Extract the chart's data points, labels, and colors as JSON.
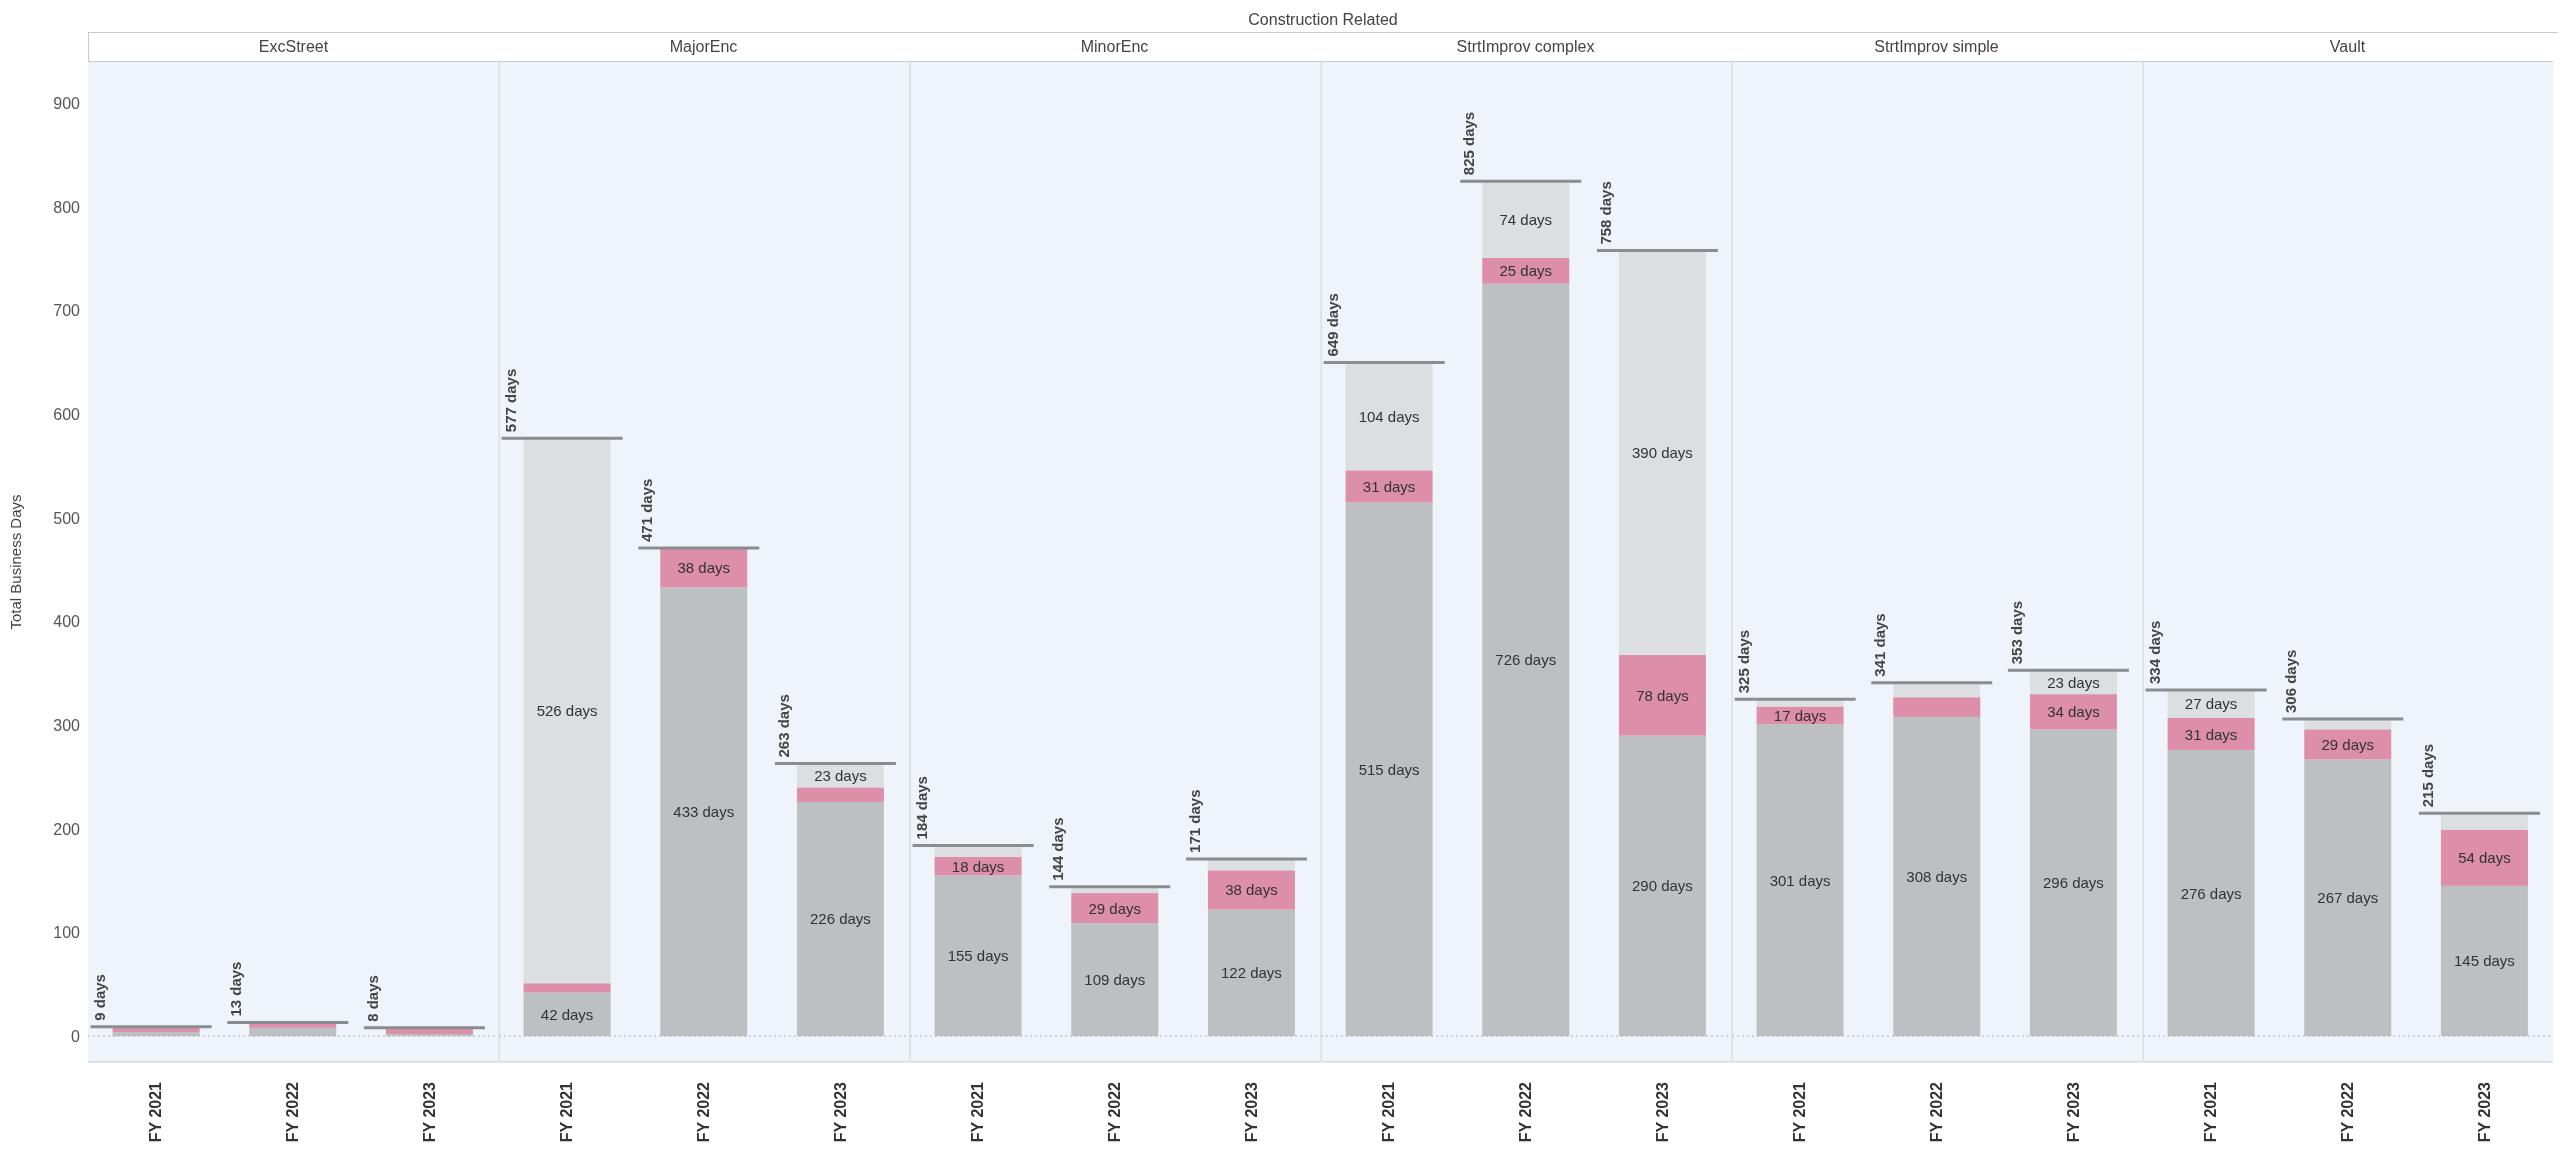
{
  "chart_data": [
    {
      "type": "bar",
      "title": "ExcStreet",
      "annotations": [
        "Construction Related"
      ],
      "ylabel": "Total Business Days",
      "categories": [
        "FY 2021",
        "FY 2022",
        "FY 2023"
      ],
      "stacked": true,
      "ylim": [
        -25,
        940
      ],
      "yticks": [
        0,
        100,
        200,
        300,
        400,
        500,
        600,
        700,
        800,
        900
      ],
      "ref_lines": [
        {
          "axis": "y",
          "value": 0,
          "line_style": "dotted",
          "color": "#b0b4b8"
        }
      ],
      "totals": [
        "9 days",
        "13 days",
        "8 days"
      ],
      "series": [
        {
          "color": "#bcc0c3",
          "values": [
            4,
            8,
            2
          ],
          "value_labels": [
            null,
            null,
            null
          ]
        },
        {
          "color": "#dd8ea8",
          "values": [
            4,
            4,
            5
          ],
          "value_labels": [
            null,
            null,
            null
          ]
        },
        {
          "color": "#dcdfe1",
          "values": [
            1,
            1,
            1
          ],
          "value_labels": [
            null,
            null,
            null
          ]
        }
      ]
    },
    {
      "type": "bar",
      "title": "MajorEnc",
      "categories": [
        "FY 2021",
        "FY 2022",
        "FY 2023"
      ],
      "stacked": true,
      "ylim": [
        -25,
        940
      ],
      "yticks": [
        0,
        100,
        200,
        300,
        400,
        500,
        600,
        700,
        800,
        900
      ],
      "tick_labels": "x",
      "ref_lines": [
        {
          "axis": "y",
          "value": 0,
          "line_style": "dotted",
          "color": "#b0b4b8"
        }
      ],
      "totals": [
        "577 days",
        "471 days",
        "263 days"
      ],
      "series": [
        {
          "color": "#bcc0c3",
          "values": [
            42,
            433,
            226
          ],
          "value_labels": [
            "42 days",
            "433 days",
            "226 days"
          ]
        },
        {
          "color": "#dd8ea8",
          "values": [
            9,
            38,
            14
          ],
          "value_labels": [
            null,
            "38 days",
            null
          ]
        },
        {
          "color": "#dcdfe1",
          "values": [
            526,
            null,
            23
          ],
          "value_labels": [
            "526 days",
            null,
            "23 days"
          ]
        }
      ]
    },
    {
      "type": "bar",
      "title": "MinorEnc",
      "categories": [
        "FY 2021",
        "FY 2022",
        "FY 2023"
      ],
      "stacked": true,
      "ylim": [
        -25,
        940
      ],
      "yticks": [
        0,
        100,
        200,
        300,
        400,
        500,
        600,
        700,
        800,
        900
      ],
      "tick_labels": "x",
      "ref_lines": [
        {
          "axis": "y",
          "value": 0,
          "line_style": "dotted",
          "color": "#b0b4b8"
        }
      ],
      "totals": [
        "184 days",
        "144 days",
        "171 days"
      ],
      "series": [
        {
          "color": "#bcc0c3",
          "values": [
            155,
            109,
            122
          ],
          "value_labels": [
            "155 days",
            "109 days",
            "122 days"
          ]
        },
        {
          "color": "#dd8ea8",
          "values": [
            18,
            29,
            38
          ],
          "value_labels": [
            "18 days",
            "29 days",
            "38 days"
          ]
        },
        {
          "color": "#dcdfe1",
          "values": [
            11,
            6,
            11
          ],
          "value_labels": [
            null,
            null,
            null
          ]
        }
      ]
    },
    {
      "type": "bar",
      "title": "StrtImprov complex",
      "categories": [
        "FY 2021",
        "FY 2022",
        "FY 2023"
      ],
      "stacked": true,
      "ylim": [
        -25,
        940
      ],
      "yticks": [
        0,
        100,
        200,
        300,
        400,
        500,
        600,
        700,
        800,
        900
      ],
      "tick_labels": "x",
      "ref_lines": [
        {
          "axis": "y",
          "value": 0,
          "line_style": "dotted",
          "color": "#b0b4b8"
        }
      ],
      "totals": [
        "649 days",
        "825 days",
        "758 days"
      ],
      "series": [
        {
          "color": "#bcc0c3",
          "values": [
            515,
            726,
            290
          ],
          "value_labels": [
            "515 days",
            "726 days",
            "290 days"
          ]
        },
        {
          "color": "#dd8ea8",
          "values": [
            31,
            25,
            78
          ],
          "value_labels": [
            "31 days",
            "25 days",
            "78 days"
          ]
        },
        {
          "color": "#dcdfe1",
          "values": [
            104,
            74,
            390
          ],
          "value_labels": [
            "104 days",
            "74 days",
            "390 days"
          ]
        }
      ]
    },
    {
      "type": "bar",
      "title": "StrtImprov simple",
      "categories": [
        "FY 2021",
        "FY 2022",
        "FY 2023"
      ],
      "stacked": true,
      "ylim": [
        -25,
        940
      ],
      "yticks": [
        0,
        100,
        200,
        300,
        400,
        500,
        600,
        700,
        800,
        900
      ],
      "tick_labels": "x",
      "ref_lines": [
        {
          "axis": "y",
          "value": 0,
          "line_style": "dotted",
          "color": "#b0b4b8"
        }
      ],
      "totals": [
        "325 days",
        "341 days",
        "353 days"
      ],
      "series": [
        {
          "color": "#bcc0c3",
          "values": [
            301,
            308,
            296
          ],
          "value_labels": [
            "301 days",
            "308 days",
            "296 days"
          ]
        },
        {
          "color": "#dd8ea8",
          "values": [
            17,
            19,
            34
          ],
          "value_labels": [
            "17 days",
            null,
            "34 days"
          ]
        },
        {
          "color": "#dcdfe1",
          "values": [
            7,
            14,
            23
          ],
          "value_labels": [
            null,
            null,
            "23 days"
          ]
        }
      ]
    },
    {
      "type": "bar",
      "title": "Vault",
      "categories": [
        "FY 2021",
        "FY 2022",
        "FY 2023"
      ],
      "stacked": true,
      "ylim": [
        -25,
        940
      ],
      "yticks": [
        0,
        100,
        200,
        300,
        400,
        500,
        600,
        700,
        800,
        900
      ],
      "tick_labels": "x",
      "ref_lines": [
        {
          "axis": "y",
          "value": 0,
          "line_style": "dotted",
          "color": "#b0b4b8"
        }
      ],
      "totals": [
        "334 days",
        "306 days",
        "215 days"
      ],
      "series": [
        {
          "color": "#bcc0c3",
          "values": [
            276,
            267,
            145
          ],
          "value_labels": [
            "276 days",
            "267 days",
            "145 days"
          ]
        },
        {
          "color": "#dd8ea8",
          "values": [
            31,
            29,
            54
          ],
          "value_labels": [
            "31 days",
            "29 days",
            "54 days"
          ]
        },
        {
          "color": "#dcdfe1",
          "values": [
            27,
            10,
            16
          ],
          "value_labels": [
            "27 days",
            null,
            null
          ]
        }
      ]
    }
  ]
}
